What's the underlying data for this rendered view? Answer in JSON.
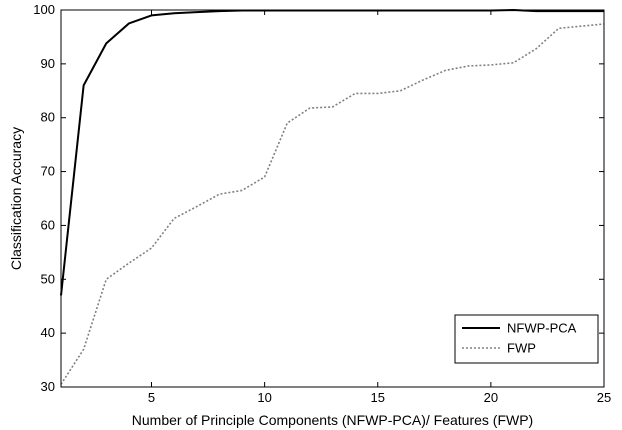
{
  "chart_data": {
    "type": "line",
    "title": "",
    "xlabel": "Number of Principle Components (NFWP-PCA)/ Features (FWP)",
    "ylabel": "Classification Accuracy",
    "xlim": [
      1,
      25
    ],
    "ylim": [
      30,
      100
    ],
    "xticks": [
      5,
      10,
      15,
      20,
      25
    ],
    "yticks": [
      30,
      40,
      50,
      60,
      70,
      80,
      90,
      100
    ],
    "grid": false,
    "legend_position": "bottom-right",
    "x": [
      1,
      2,
      3,
      4,
      5,
      6,
      7,
      8,
      9,
      10,
      11,
      12,
      13,
      14,
      15,
      16,
      17,
      18,
      19,
      20,
      21,
      22,
      23,
      24,
      25
    ],
    "series": [
      {
        "name": "NFWP-PCA",
        "color": "#000000",
        "dash": "solid",
        "values": [
          47,
          86,
          93.8,
          97.5,
          99,
          99.4,
          99.6,
          99.8,
          99.9,
          99.9,
          99.9,
          99.9,
          99.9,
          99.9,
          99.9,
          99.9,
          99.9,
          99.9,
          99.9,
          99.9,
          100,
          99.8,
          99.8,
          99.8,
          99.8
        ]
      },
      {
        "name": "FWP",
        "color": "#808080",
        "dash": "dotted",
        "values": [
          30.5,
          37,
          50,
          53,
          55.8,
          61.3,
          63.5,
          65.8,
          66.5,
          69,
          79,
          81.8,
          82,
          84.5,
          84.5,
          85,
          87,
          88.8,
          89.6,
          89.8,
          90.2,
          92.8,
          96.6,
          97,
          97.4
        ]
      }
    ]
  }
}
